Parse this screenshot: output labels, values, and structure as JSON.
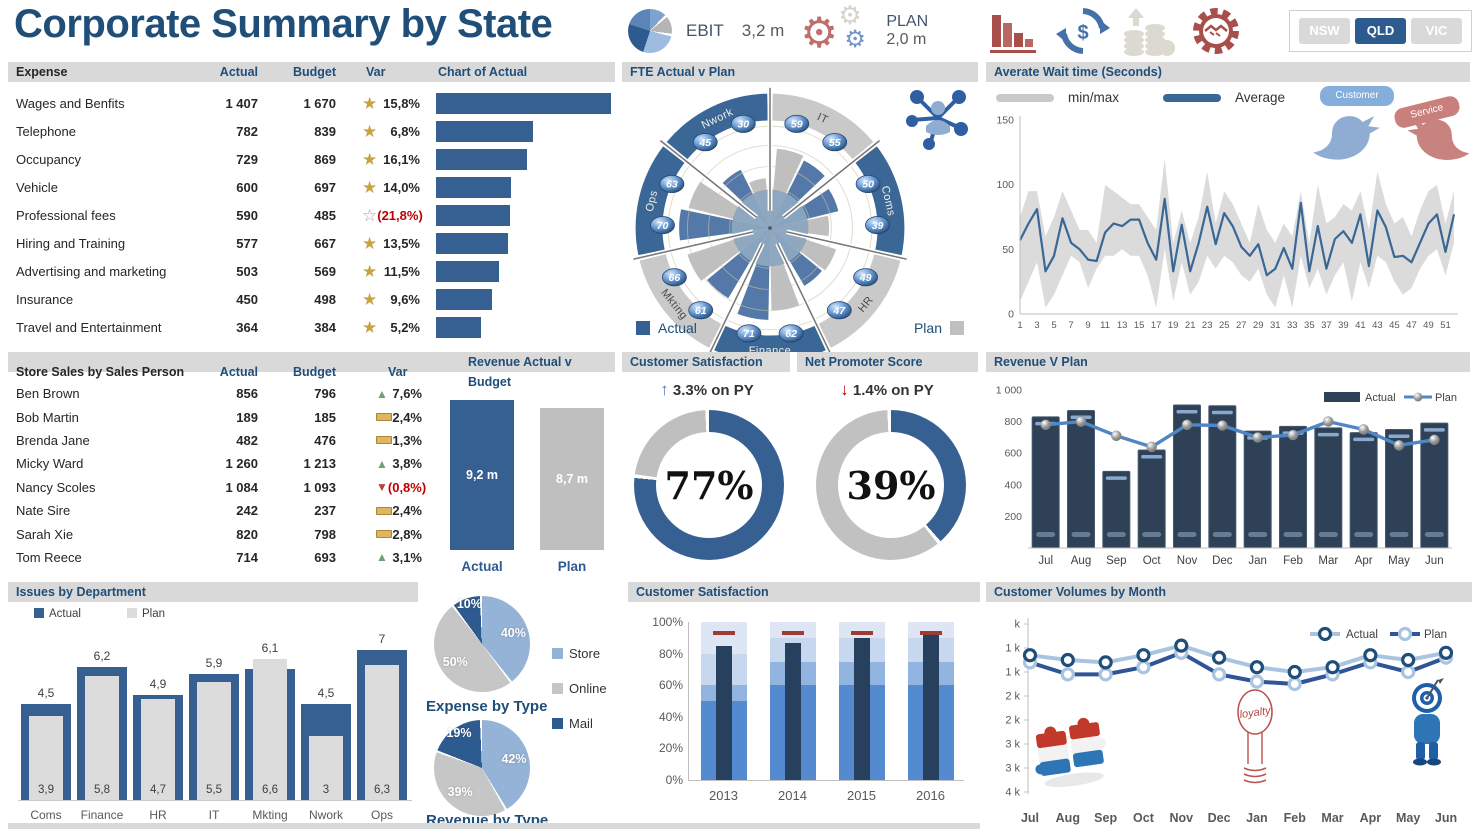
{
  "title": "Corporate Summary by State",
  "kpi": {
    "ebit_label": "EBIT",
    "ebit_value": "3,2 m",
    "plan_label": "PLAN",
    "plan_value": "2,0 m"
  },
  "top_icons": [
    "declining-bar-chart",
    "dollar-cycle",
    "coins-growth",
    "gear-handshake"
  ],
  "states": [
    {
      "label": "NSW",
      "active": false
    },
    {
      "label": "QLD",
      "active": true
    },
    {
      "label": "VIC",
      "active": false
    }
  ],
  "wait_bubbles": [
    "Customer",
    "Service"
  ],
  "expense_table": {
    "headers": [
      "Expense",
      "Actual",
      "Budget",
      "Var",
      "Chart of Actual"
    ],
    "max_bar": 1407,
    "rows": [
      {
        "name": "Wages and Benfits",
        "actual": "1 407",
        "budget": "1 670",
        "var": "15,8%",
        "neg": false,
        "icon": "star-filled",
        "bar": 1407
      },
      {
        "name": "Telephone",
        "actual": "782",
        "budget": "839",
        "var": "6,8%",
        "neg": false,
        "icon": "star-filled",
        "bar": 782
      },
      {
        "name": "Occupancy",
        "actual": "729",
        "budget": "869",
        "var": "16,1%",
        "neg": false,
        "icon": "star-filled",
        "bar": 729
      },
      {
        "name": "Vehicle",
        "actual": "600",
        "budget": "697",
        "var": "14,0%",
        "neg": false,
        "icon": "star-filled",
        "bar": 600
      },
      {
        "name": "Professional fees",
        "actual": "590",
        "budget": "485",
        "var": "(21,8%)",
        "neg": true,
        "icon": "star-outline",
        "bar": 590
      },
      {
        "name": "Hiring and Training",
        "actual": "577",
        "budget": "667",
        "var": "13,5%",
        "neg": false,
        "icon": "star-filled",
        "bar": 577
      },
      {
        "name": "Advertising and marketing",
        "actual": "503",
        "budget": "569",
        "var": "11,5%",
        "neg": false,
        "icon": "star-filled",
        "bar": 503
      },
      {
        "name": "Insurance",
        "actual": "450",
        "budget": "498",
        "var": "9,6%",
        "neg": false,
        "icon": "star-filled",
        "bar": 450
      },
      {
        "name": "Travel and Entertainment",
        "actual": "364",
        "budget": "384",
        "var": "5,2%",
        "neg": false,
        "icon": "star-filled",
        "bar": 364
      }
    ]
  },
  "sales_table": {
    "headers": [
      "Store Sales by Sales Person",
      "Actual",
      "Budget",
      "Var",
      "Revenue Actual v Budget"
    ],
    "rows": [
      {
        "name": "Ben Brown",
        "actual": "856",
        "budget": "796",
        "var": "7,6%",
        "neg": false,
        "icon": "up"
      },
      {
        "name": "Bob Martin",
        "actual": "189",
        "budget": "185",
        "var": "2,4%",
        "neg": false,
        "icon": "flat"
      },
      {
        "name": "Brenda Jane",
        "actual": "482",
        "budget": "476",
        "var": "1,3%",
        "neg": false,
        "icon": "flat"
      },
      {
        "name": "Micky Ward",
        "actual": "1 260",
        "budget": "1 213",
        "var": "3,8%",
        "neg": false,
        "icon": "up"
      },
      {
        "name": "Nancy Scoles",
        "actual": "1 084",
        "budget": "1 093",
        "var": "(0,8%)",
        "neg": true,
        "icon": "down"
      },
      {
        "name": "Nate Sire",
        "actual": "242",
        "budget": "237",
        "var": "2,4%",
        "neg": false,
        "icon": "flat"
      },
      {
        "name": "Sarah Xie",
        "actual": "820",
        "budget": "798",
        "var": "2,8%",
        "neg": false,
        "icon": "flat"
      },
      {
        "name": "Tom Reece",
        "actual": "714",
        "budget": "693",
        "var": "3,1%",
        "neg": false,
        "icon": "up"
      }
    ]
  },
  "chart_data": [
    {
      "id": "fte",
      "type": "rose",
      "title": "FTE Actual v Plan",
      "legend": [
        "Actual",
        "Plan"
      ],
      "segments": [
        {
          "name": "IT",
          "values": [
            59,
            55
          ],
          "arc": "gray"
        },
        {
          "name": "Coms",
          "values": [
            50,
            39
          ],
          "arc": "blue"
        },
        {
          "name": "HR",
          "values": [
            49,
            47
          ],
          "arc": "gray"
        },
        {
          "name": "Finance",
          "values": [
            62,
            71
          ],
          "arc": "blue"
        },
        {
          "name": "Mkting",
          "values": [
            61,
            66
          ],
          "arc": "gray"
        },
        {
          "name": "Ops",
          "values": [
            70,
            63
          ],
          "arc": "blue"
        },
        {
          "name": "Nwork",
          "values": [
            45,
            30
          ],
          "arc": "blue"
        }
      ]
    },
    {
      "id": "wait",
      "type": "line",
      "title": "Averate Wait time (Seconds)",
      "legend": [
        "min/max",
        "Average"
      ],
      "ylim": [
        0,
        150
      ],
      "y_ticks": [
        0,
        50,
        100,
        150
      ],
      "x_ticks": [
        1,
        3,
        5,
        7,
        9,
        11,
        13,
        15,
        17,
        19,
        21,
        23,
        25,
        27,
        29,
        31,
        33,
        35,
        37,
        39,
        41,
        43,
        45,
        47,
        49,
        51
      ],
      "avg": [
        57,
        70,
        81,
        33,
        45,
        74,
        55,
        50,
        42,
        41,
        63,
        70,
        68,
        73,
        73,
        55,
        42,
        89,
        33,
        69,
        33,
        55,
        83,
        54,
        78,
        68,
        52,
        45,
        54,
        30,
        35,
        51,
        35,
        86,
        33,
        68,
        35,
        58,
        64,
        55,
        77,
        37,
        80,
        67,
        44,
        45,
        40,
        55,
        70,
        77,
        48,
        77
      ],
      "min": [
        10,
        25,
        40,
        5,
        15,
        30,
        45,
        40,
        20,
        35,
        45,
        45,
        50,
        45,
        45,
        30,
        5,
        50,
        10,
        40,
        15,
        25,
        45,
        35,
        45,
        40,
        30,
        25,
        35,
        15,
        5,
        30,
        5,
        45,
        20,
        35,
        15,
        30,
        40,
        10,
        40,
        20,
        45,
        40,
        25,
        15,
        20,
        35,
        45,
        50,
        30,
        55
      ],
      "max": [
        75,
        95,
        95,
        60,
        75,
        95,
        80,
        65,
        65,
        55,
        100,
        95,
        90,
        85,
        85,
        75,
        65,
        120,
        55,
        80,
        55,
        75,
        110,
        70,
        95,
        85,
        70,
        55,
        85,
        65,
        55,
        70,
        60,
        95,
        55,
        100,
        70,
        75,
        85,
        80,
        95,
        65,
        110,
        85,
        70,
        75,
        60,
        80,
        95,
        100,
        70,
        95
      ]
    },
    {
      "id": "rev_actual_v_budget",
      "type": "bar",
      "title": "Revenue Actual v Budget",
      "categories": [
        "Actual",
        "Plan"
      ],
      "values": [
        9.2,
        8.7
      ],
      "labels": [
        "9,2 m",
        "8,7 m"
      ]
    },
    {
      "id": "csat_donut",
      "type": "pie",
      "title": "Customer Satisfaction",
      "value": 77,
      "label": "77%",
      "delta_arrow": "↑",
      "delta": "3.3% on PY"
    },
    {
      "id": "nps_donut",
      "type": "pie",
      "title": "Net Promoter Score",
      "value": 39,
      "label": "39%",
      "delta_arrow": "↓",
      "delta": "1.4% on PY"
    },
    {
      "id": "rev_plan",
      "type": "bar",
      "title": "Revenue V Plan",
      "categories": [
        "Jul",
        "Aug",
        "Sep",
        "Oct",
        "Nov",
        "Dec",
        "Jan",
        "Feb",
        "Mar",
        "Apr",
        "May",
        "Jun"
      ],
      "series": [
        {
          "name": "Actual",
          "values": [
            830,
            870,
            485,
            620,
            905,
            900,
            740,
            770,
            760,
            730,
            750,
            790
          ]
        },
        {
          "name": "Plan",
          "values": [
            780,
            800,
            710,
            640,
            780,
            775,
            700,
            715,
            800,
            750,
            650,
            685
          ]
        }
      ],
      "ylim": [
        0,
        1000
      ],
      "y_ticks": [
        200,
        400,
        600,
        800,
        1000
      ],
      "y_tick_labels": [
        "200",
        "400",
        "600",
        "800",
        "1 000"
      ]
    },
    {
      "id": "issues",
      "type": "bar",
      "title": "Issues by Department",
      "categories": [
        "Coms",
        "Finance",
        "HR",
        "IT",
        "Mkting",
        "Nwork",
        "Ops"
      ],
      "series": [
        {
          "name": "Actual",
          "values": [
            4.5,
            6.2,
            4.9,
            5.9,
            6.1,
            4.5,
            7
          ],
          "labels": [
            "4,5",
            "6,2",
            "4,9",
            "5,9",
            "6,1",
            "4,5",
            "7"
          ]
        },
        {
          "name": "Plan",
          "values": [
            3.9,
            5.8,
            4.7,
            5.5,
            6.6,
            3,
            6.3
          ],
          "labels": [
            "3,9",
            "5,8",
            "4,7",
            "5,5",
            "6,6",
            "3",
            "6,3"
          ]
        }
      ],
      "ylim": [
        0,
        7
      ]
    },
    {
      "id": "expense_pie",
      "type": "pie",
      "title": "Expense by Type",
      "categories": [
        "Store",
        "Online",
        "Mail"
      ],
      "values": [
        40,
        50,
        10
      ],
      "labels": [
        "40%",
        "50%",
        "10%"
      ]
    },
    {
      "id": "revenue_pie",
      "type": "pie",
      "title": "Revenue by Type",
      "categories": [
        "Store",
        "Online",
        "Mail"
      ],
      "values": [
        42,
        39,
        19
      ],
      "labels": [
        "42%",
        "39%",
        "19%"
      ]
    },
    {
      "id": "csat_years",
      "type": "bar",
      "title": "Customer Satisfaction",
      "categories": [
        "2013",
        "2014",
        "2015",
        "2016"
      ],
      "bands": [
        [
          50,
          60,
          80,
          100
        ],
        [
          60,
          75,
          90,
          100
        ],
        [
          60,
          75,
          90,
          100
        ],
        [
          60,
          75,
          90,
          100
        ]
      ],
      "values": [
        85,
        87,
        90,
        92
      ],
      "target": 93,
      "ylim": [
        0,
        100
      ],
      "y_ticks": [
        "0%",
        "20%",
        "40%",
        "60%",
        "80%",
        "100%"
      ]
    },
    {
      "id": "volumes",
      "type": "line",
      "title": "Customer Volumes by Month",
      "categories": [
        "Jul",
        "Aug",
        "Sep",
        "Oct",
        "Nov",
        "Dec",
        "Jan",
        "Feb",
        "Mar",
        "Apr",
        "May",
        "Jun"
      ],
      "series": [
        {
          "name": "Actual",
          "values": [
            2850,
            2750,
            2700,
            2850,
            3050,
            2800,
            2600,
            2500,
            2600,
            2850,
            2750,
            2900
          ]
        },
        {
          "name": "Plan",
          "values": [
            2700,
            2450,
            2450,
            2600,
            2900,
            2450,
            2300,
            2250,
            2450,
            2700,
            2500,
            2800
          ]
        }
      ],
      "ylim": [
        0,
        3500
      ],
      "y_axis_labels": [
        "k",
        "1 k",
        "1 k",
        "2 k",
        "2 k",
        "3 k",
        "3 k",
        "4 k"
      ],
      "loyalty_label": "loyalty"
    }
  ],
  "colors": {
    "accent": "#1F4E79",
    "band": "#D9D9D9",
    "bar_blue": "#376092",
    "dark_navy": "#2E4156",
    "light_blue": "#95B3D7",
    "gray": "#BFBFBF",
    "red": "#9E3B33",
    "gold": "#C8A344"
  }
}
